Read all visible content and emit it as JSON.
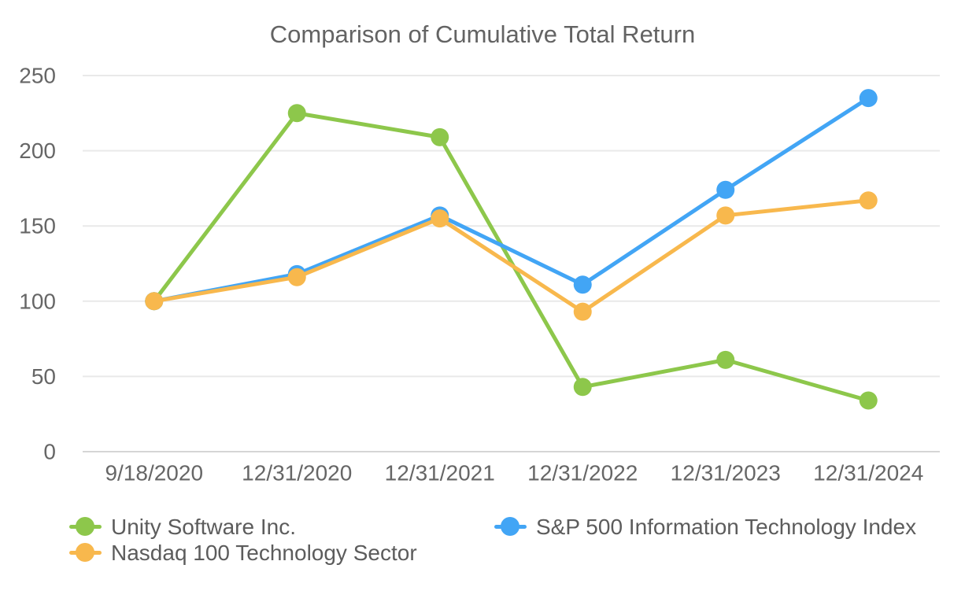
{
  "chart_data": {
    "type": "line",
    "title": "Comparison of Cumulative Total Return",
    "categories": [
      "9/18/2020",
      "12/31/2020",
      "12/31/2021",
      "12/31/2022",
      "12/31/2023",
      "12/31/2024"
    ],
    "series": [
      {
        "name": "Unity Software Inc.",
        "color": "#8DC74B",
        "values": [
          100,
          225,
          209,
          43,
          61,
          34
        ]
      },
      {
        "name": "S&P 500 Information Technology Index",
        "color": "#42A5F5",
        "values": [
          100,
          118,
          157,
          111,
          174,
          235
        ]
      },
      {
        "name": "Nasdaq 100 Technology Sector",
        "color": "#F8B84D",
        "values": [
          100,
          116,
          155,
          93,
          157,
          167
        ]
      }
    ],
    "xlabel": "",
    "ylabel": "",
    "ylim": [
      0,
      250
    ],
    "yticks": [
      0,
      50,
      100,
      150,
      200,
      250
    ],
    "grid": true,
    "legend_position": "bottom"
  }
}
